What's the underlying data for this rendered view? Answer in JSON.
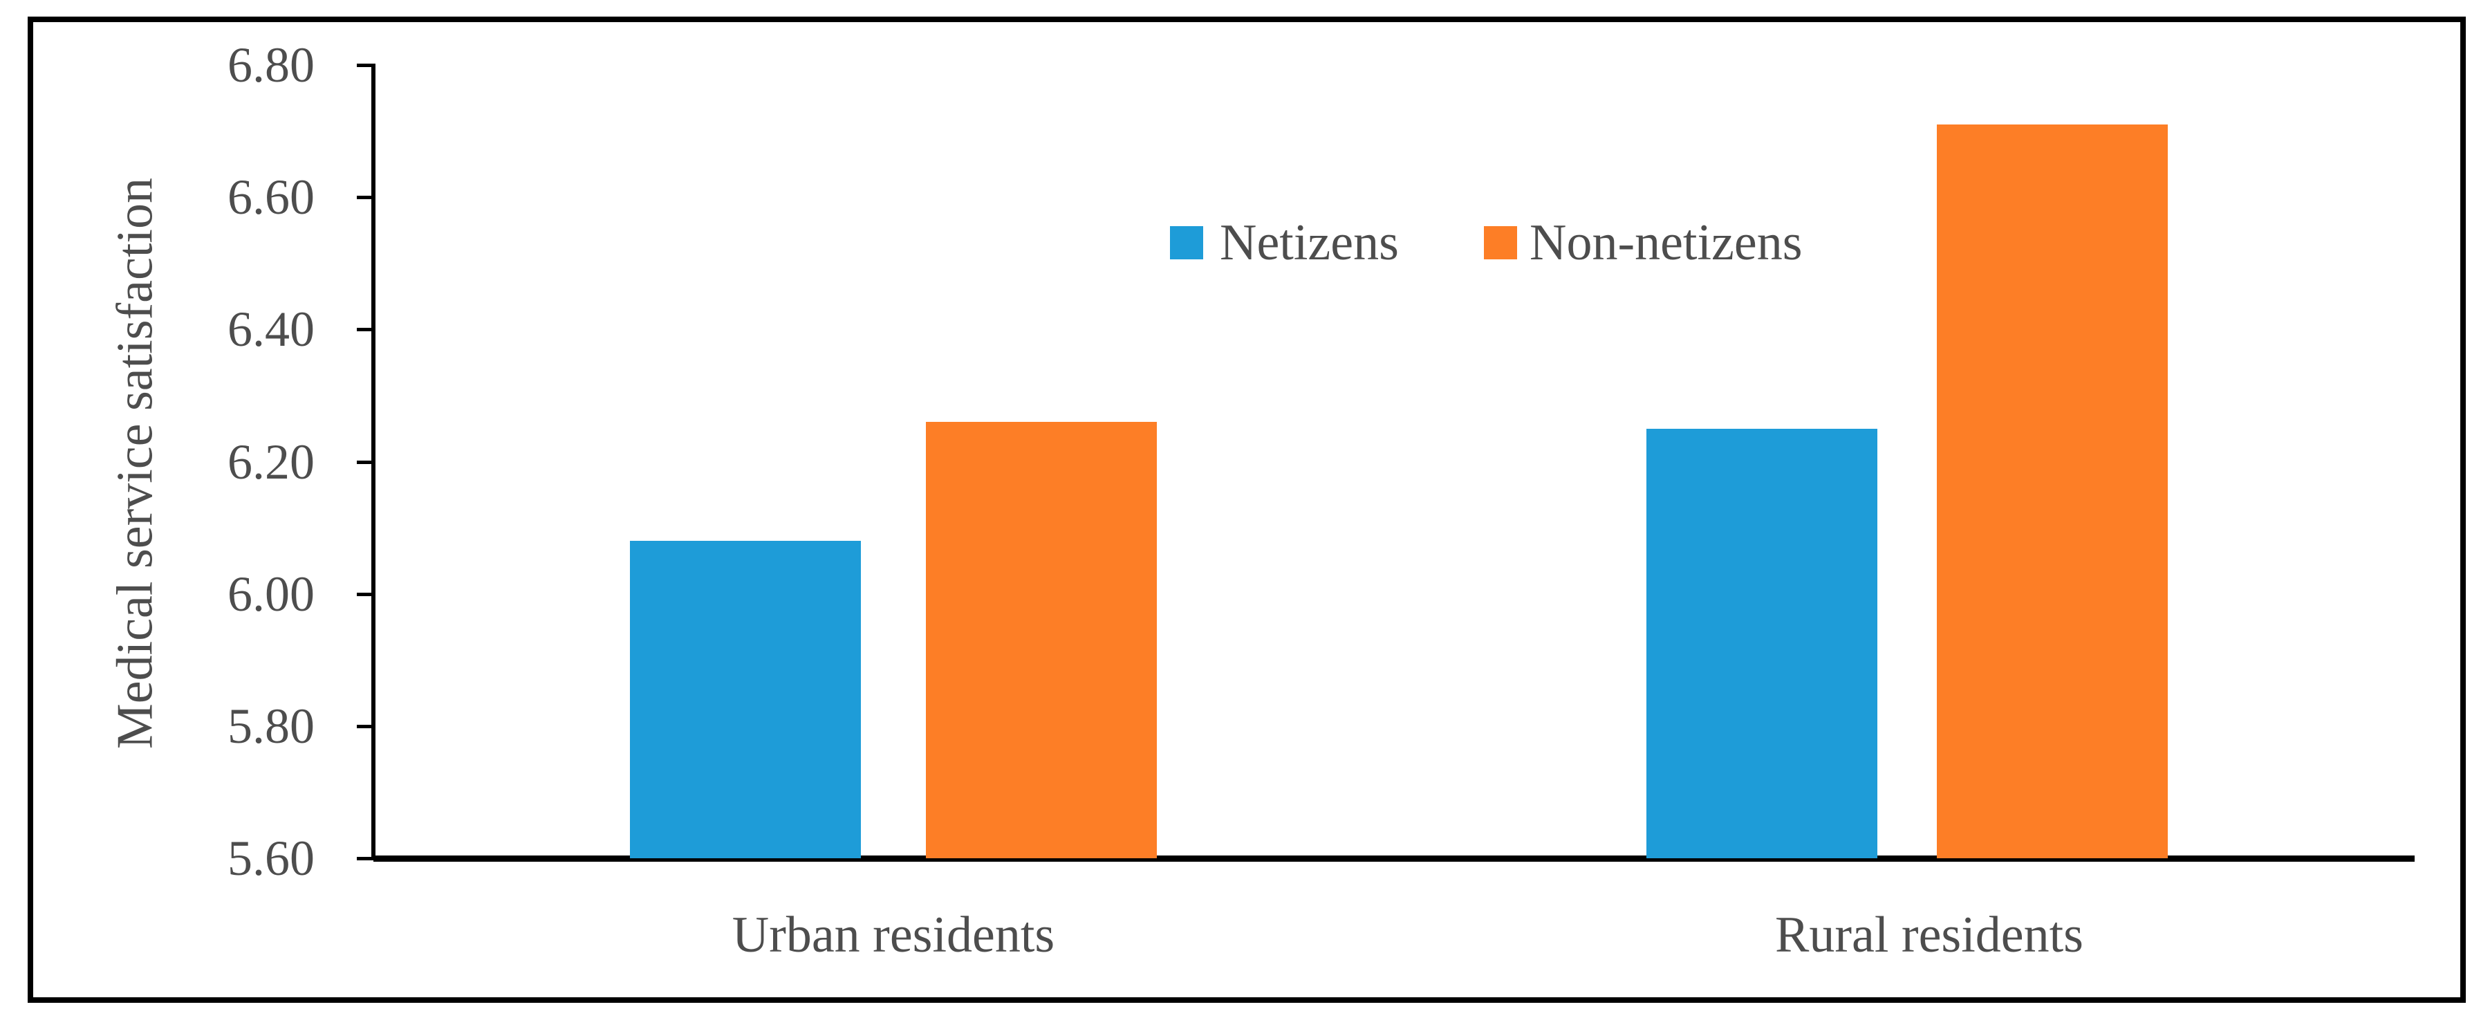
{
  "figure": {
    "background_color": "#ffffff",
    "border_color": "#000000",
    "text_color": "#4D4D4D"
  },
  "y_axis": {
    "title": "Medical service satisfaction",
    "tick_labels": [
      "6.80",
      "6.60",
      "6.40",
      "6.20",
      "6.00",
      "5.80",
      "5.60"
    ],
    "min": 5.6,
    "max": 6.8,
    "tick_step": 0.2
  },
  "x_axis": {
    "categories": [
      "Urban residents",
      "Rural residents"
    ]
  },
  "legend": {
    "items": [
      {
        "label": "Netizens",
        "color": "#1E9CD8"
      },
      {
        "label": "Non-netizens",
        "color": "#FD7E26"
      }
    ]
  },
  "chart_data": {
    "type": "bar",
    "categories": [
      "Urban residents",
      "Rural residents"
    ],
    "series": [
      {
        "name": "Netizens",
        "color": "#1E9CD8",
        "values": [
          6.08,
          6.25
        ]
      },
      {
        "name": "Non-netizens",
        "color": "#FD7E26",
        "values": [
          6.26,
          6.71
        ]
      }
    ],
    "title": "",
    "xlabel": "",
    "ylabel": "Medical service satisfaction",
    "ylim": [
      5.6,
      6.8
    ],
    "ytick_step": 0.2,
    "grid": false,
    "legend_position": "upper-center"
  }
}
